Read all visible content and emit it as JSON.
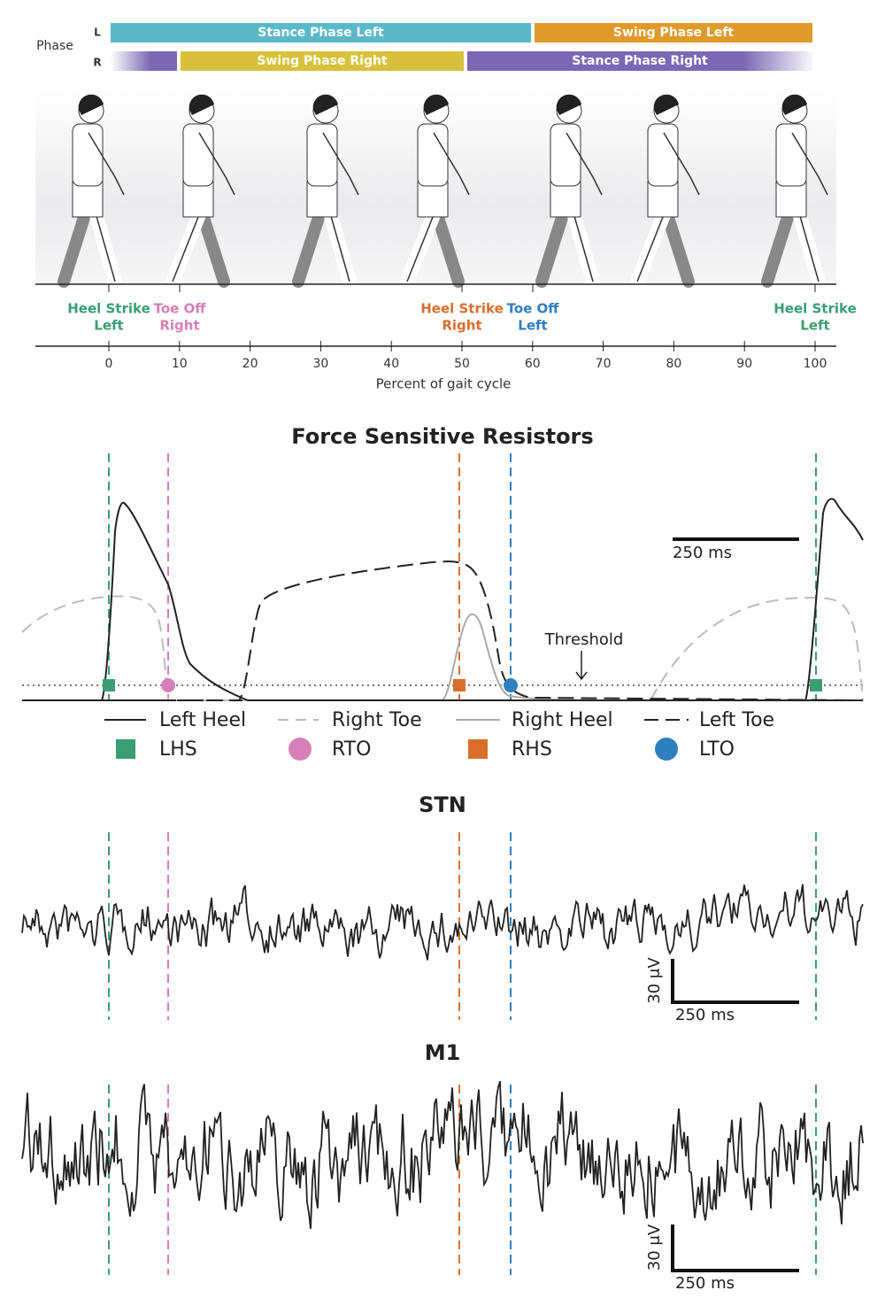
{
  "phase": {
    "label": "Phase",
    "rows": [
      {
        "side": "L",
        "bars": [
          {
            "text": "Stance Phase Left",
            "color": "#5bb8c8"
          },
          {
            "text": "Swing Phase Left",
            "color": "#e09a2a"
          }
        ]
      },
      {
        "side": "R",
        "bars": [
          {
            "text": "Swing Phase Right",
            "color": "#d8c13c"
          },
          {
            "text": "Stance Phase Right",
            "color": "#7b68b5"
          }
        ]
      }
    ]
  },
  "events": [
    {
      "lines": [
        "Heel Strike",
        "Left"
      ],
      "color": "#3a9e72"
    },
    {
      "lines": [
        "Toe Off",
        "Right"
      ],
      "color": "#d77fb8"
    },
    {
      "lines": [
        "Heel Strike",
        "Right"
      ],
      "color": "#d8702c"
    },
    {
      "lines": [
        "Toe Off",
        "Left"
      ],
      "color": "#2f7fbf"
    },
    {
      "lines": [
        "Heel Strike",
        "Left"
      ],
      "color": "#3a9e72"
    }
  ],
  "gait_axis": {
    "ticks": [
      0,
      10,
      20,
      30,
      40,
      50,
      60,
      70,
      80,
      90,
      100
    ],
    "label": "Percent of gait cycle"
  },
  "fsr": {
    "title": "Force Sensitive Resistors",
    "scale": "250 ms",
    "threshold": "Threshold",
    "legend_lines": [
      "Left Heel",
      "Right Toe",
      "Right Heel",
      "Left Toe"
    ],
    "legend_markers": [
      "LHS",
      "RTO",
      "RHS",
      "LTO"
    ]
  },
  "stn": {
    "title": "STN",
    "scale_y": "30 μV",
    "scale_x": "250 ms"
  },
  "m1": {
    "title": "M1",
    "scale_y": "30 μV",
    "scale_x": "250 ms"
  }
}
